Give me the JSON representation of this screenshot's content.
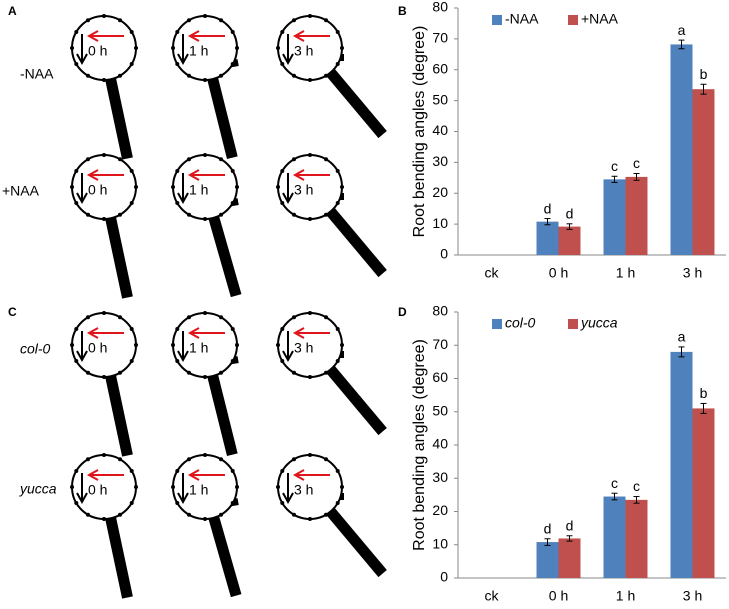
{
  "panels": [
    {
      "label": "A",
      "rows": [
        {
          "label": "-NAA",
          "times": [
            "0 h",
            "1 h",
            "3 h"
          ]
        },
        {
          "label": "+NAA",
          "times": [
            "0 h",
            "1 h",
            "3 h"
          ]
        }
      ]
    },
    {
      "label": "C",
      "rows": [
        {
          "label": "col-0",
          "times": [
            "0 h",
            "1 h",
            "3 h"
          ]
        },
        {
          "label": "yucca",
          "times": [
            "0 h",
            "1 h",
            "3 h"
          ]
        }
      ]
    }
  ],
  "chart_data": [
    {
      "type": "bar",
      "panel": "B",
      "y_label": "Root bending angles (degree)",
      "categories": [
        "ck",
        "0 h",
        "1 h",
        "3 h"
      ],
      "series": [
        {
          "name": "-NAA",
          "color": "#4f81bd",
          "values": [
            0,
            10.8,
            24.5,
            68.2
          ],
          "errors": [
            null,
            1.0,
            1.0,
            1.4
          ],
          "letters": [
            null,
            "d",
            "c",
            "a"
          ]
        },
        {
          "name": "+NAA",
          "color": "#c0504d",
          "values": [
            0,
            9.2,
            25.3,
            53.7
          ],
          "errors": [
            null,
            0.9,
            1.1,
            1.6
          ],
          "letters": [
            null,
            "d",
            "c",
            "b"
          ]
        }
      ],
      "ylim": [
        0,
        80
      ],
      "yticks": [
        0,
        10,
        20,
        30,
        40,
        50,
        60,
        70,
        80
      ],
      "legend_italic": false
    },
    {
      "type": "bar",
      "panel": "D",
      "y_label": "Root bending angles (degree)",
      "categories": [
        "ck",
        "0 h",
        "1 h",
        "3 h"
      ],
      "series": [
        {
          "name": "col-0",
          "color": "#4f81bd",
          "values": [
            0,
            10.8,
            24.5,
            68.0
          ],
          "errors": [
            null,
            1.0,
            1.0,
            1.5
          ],
          "letters": [
            null,
            "d",
            "c",
            "a"
          ]
        },
        {
          "name": "yucca",
          "color": "#c0504d",
          "values": [
            0,
            11.9,
            23.5,
            51.0
          ],
          "errors": [
            null,
            0.8,
            1.0,
            1.5
          ],
          "letters": [
            null,
            "d",
            "c",
            "b"
          ]
        }
      ],
      "ylim": [
        0,
        80
      ],
      "yticks": [
        0,
        10,
        20,
        30,
        40,
        50,
        60,
        70,
        80
      ],
      "legend_italic": true
    }
  ]
}
